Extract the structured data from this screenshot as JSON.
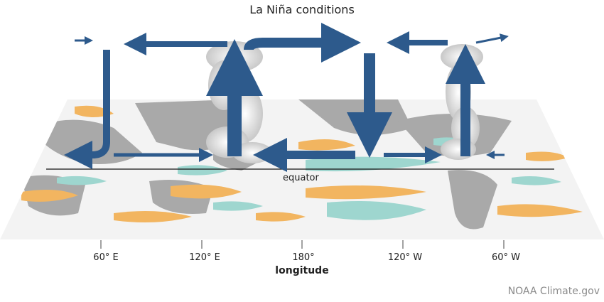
{
  "title": "La Niña conditions",
  "equator_label": "equator",
  "axis": {
    "label": "longitude",
    "ticks": [
      "60° E",
      "120° E",
      "180°",
      "120° W",
      "60° W"
    ]
  },
  "credit": "NOAA Climate.gov",
  "colors": {
    "arrow": "#2d5a8c",
    "land": "#a9a9a9",
    "ocean": "#f2f2f2",
    "warm_anomaly": "#f2b560",
    "cool_anomaly": "#9ed6cf"
  }
}
